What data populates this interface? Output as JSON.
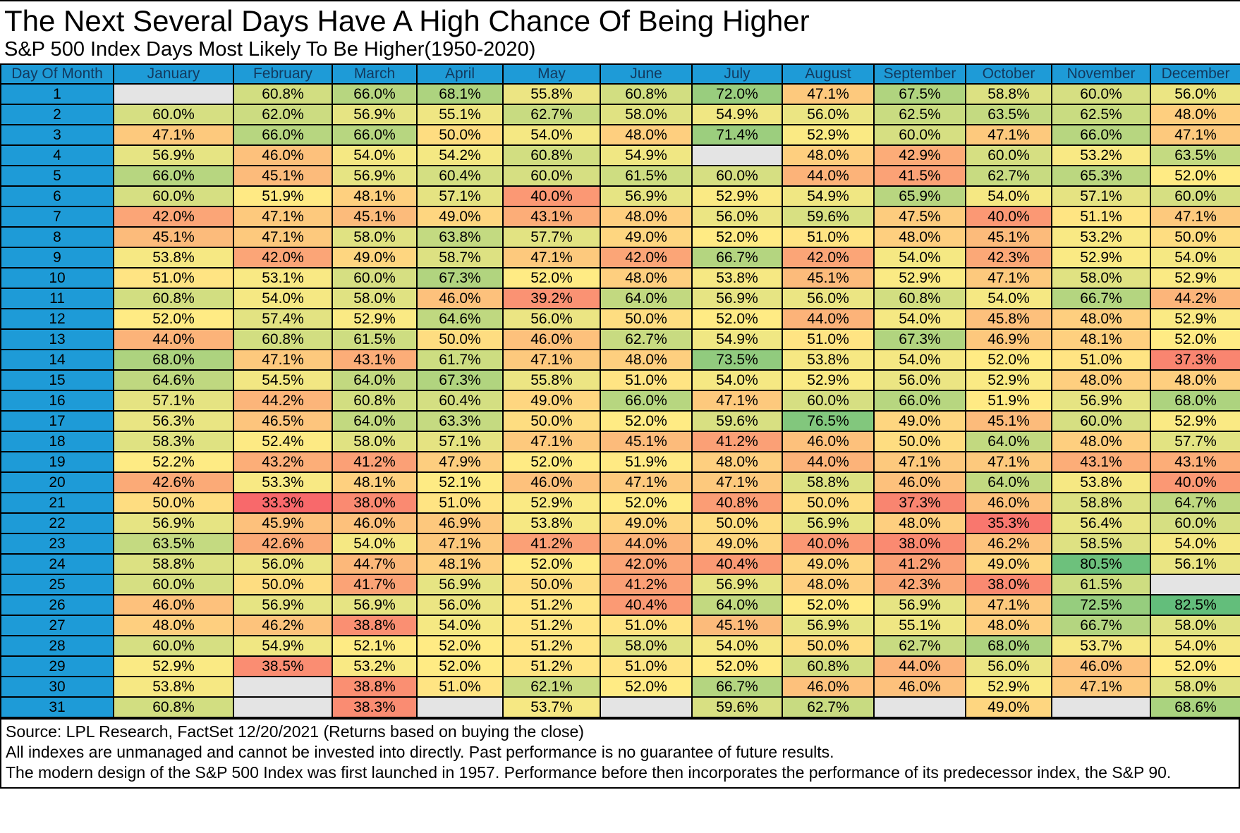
{
  "title": "The Next Several Days Have A High Chance Of Being Higher",
  "subtitle": "S&P 500 Index Days Most Likely To Be Higher(1950-2020)",
  "chart_data": {
    "type": "heatmap",
    "title": "The Next Several Days Have A High Chance Of Being Higher",
    "subtitle": "S&P 500 Index Days Most Likely To Be Higher(1950-2020)",
    "row_header": "Day Of Month",
    "columns": [
      "January",
      "February",
      "March",
      "April",
      "May",
      "June",
      "July",
      "August",
      "September",
      "October",
      "November",
      "December"
    ],
    "rows": [
      1,
      2,
      3,
      4,
      5,
      6,
      7,
      8,
      9,
      10,
      11,
      12,
      13,
      14,
      15,
      16,
      17,
      18,
      19,
      20,
      21,
      22,
      23,
      24,
      25,
      26,
      27,
      28,
      29,
      30,
      31
    ],
    "value_unit": "%",
    "values": [
      [
        null,
        60.8,
        66.0,
        68.1,
        55.8,
        60.8,
        72.0,
        47.1,
        67.5,
        58.8,
        60.0,
        56.0
      ],
      [
        60.0,
        62.0,
        56.9,
        55.1,
        62.7,
        58.0,
        54.9,
        56.0,
        62.5,
        63.5,
        62.5,
        48.0
      ],
      [
        47.1,
        66.0,
        66.0,
        50.0,
        54.0,
        48.0,
        71.4,
        52.9,
        60.0,
        47.1,
        66.0,
        47.1
      ],
      [
        56.9,
        46.0,
        54.0,
        54.2,
        60.8,
        54.9,
        null,
        48.0,
        42.9,
        60.0,
        53.2,
        63.5
      ],
      [
        66.0,
        45.1,
        56.9,
        60.4,
        60.0,
        61.5,
        60.0,
        44.0,
        41.5,
        62.7,
        65.3,
        52.0
      ],
      [
        60.0,
        51.9,
        48.1,
        57.1,
        40.0,
        56.9,
        52.9,
        54.9,
        65.9,
        54.0,
        57.1,
        60.0
      ],
      [
        42.0,
        47.1,
        45.1,
        49.0,
        43.1,
        48.0,
        56.0,
        59.6,
        47.5,
        40.0,
        51.1,
        47.1
      ],
      [
        45.1,
        47.1,
        58.0,
        63.8,
        57.7,
        49.0,
        52.0,
        51.0,
        48.0,
        45.1,
        53.2,
        50.0
      ],
      [
        53.8,
        42.0,
        49.0,
        58.7,
        47.1,
        42.0,
        66.7,
        42.0,
        54.0,
        42.3,
        52.9,
        54.0
      ],
      [
        51.0,
        53.1,
        60.0,
        67.3,
        52.0,
        48.0,
        53.8,
        45.1,
        52.9,
        47.1,
        58.0,
        52.9
      ],
      [
        60.8,
        54.0,
        58.0,
        46.0,
        39.2,
        64.0,
        56.9,
        56.0,
        60.8,
        54.0,
        66.7,
        44.2
      ],
      [
        52.0,
        57.4,
        52.9,
        64.6,
        56.0,
        50.0,
        52.0,
        44.0,
        54.0,
        45.8,
        48.0,
        52.9
      ],
      [
        44.0,
        60.8,
        61.5,
        50.0,
        46.0,
        62.7,
        54.9,
        51.0,
        67.3,
        46.9,
        48.1,
        52.0
      ],
      [
        68.0,
        47.1,
        43.1,
        61.7,
        47.1,
        48.0,
        73.5,
        53.8,
        54.0,
        52.0,
        51.0,
        37.3
      ],
      [
        64.6,
        54.5,
        64.0,
        67.3,
        55.8,
        51.0,
        54.0,
        52.9,
        56.0,
        52.9,
        48.0,
        48.0
      ],
      [
        57.1,
        44.2,
        60.8,
        60.4,
        49.0,
        66.0,
        47.1,
        60.0,
        66.0,
        51.9,
        56.9,
        68.0
      ],
      [
        56.3,
        46.5,
        64.0,
        63.3,
        50.0,
        52.0,
        59.6,
        76.5,
        49.0,
        45.1,
        60.0,
        52.9
      ],
      [
        58.3,
        52.4,
        58.0,
        57.1,
        47.1,
        45.1,
        41.2,
        46.0,
        50.0,
        64.0,
        48.0,
        57.7
      ],
      [
        52.2,
        43.2,
        41.2,
        47.9,
        52.0,
        51.9,
        48.0,
        44.0,
        47.1,
        47.1,
        43.1,
        43.1
      ],
      [
        42.6,
        53.3,
        48.1,
        52.1,
        46.0,
        47.1,
        47.1,
        58.8,
        46.0,
        64.0,
        53.8,
        40.0
      ],
      [
        50.0,
        33.3,
        38.0,
        51.0,
        52.9,
        52.0,
        40.8,
        50.0,
        37.3,
        46.0,
        58.8,
        64.7
      ],
      [
        56.9,
        45.9,
        46.0,
        46.9,
        53.8,
        49.0,
        50.0,
        56.9,
        48.0,
        35.3,
        56.4,
        60.0
      ],
      [
        63.5,
        42.6,
        54.0,
        47.1,
        41.2,
        44.0,
        49.0,
        40.0,
        38.0,
        46.2,
        58.5,
        54.0
      ],
      [
        58.8,
        56.0,
        44.7,
        48.1,
        52.0,
        42.0,
        40.4,
        49.0,
        41.2,
        49.0,
        80.5,
        56.1
      ],
      [
        60.0,
        50.0,
        41.7,
        56.9,
        50.0,
        41.2,
        56.9,
        48.0,
        42.3,
        38.0,
        61.5,
        null
      ],
      [
        46.0,
        56.9,
        56.9,
        56.0,
        51.2,
        40.4,
        64.0,
        52.0,
        56.9,
        47.1,
        72.5,
        82.5
      ],
      [
        48.0,
        46.2,
        38.8,
        54.0,
        51.2,
        51.0,
        45.1,
        56.9,
        55.1,
        48.0,
        66.7,
        58.0
      ],
      [
        60.0,
        54.9,
        52.1,
        52.0,
        51.2,
        58.0,
        54.0,
        50.0,
        62.7,
        68.0,
        53.7,
        54.0
      ],
      [
        52.9,
        38.5,
        53.2,
        52.0,
        51.2,
        51.0,
        52.0,
        60.8,
        44.0,
        56.0,
        46.0,
        52.0
      ],
      [
        53.8,
        null,
        38.8,
        51.0,
        62.1,
        52.0,
        66.7,
        46.0,
        46.0,
        52.9,
        47.1,
        58.0
      ],
      [
        60.8,
        null,
        38.3,
        null,
        53.7,
        null,
        59.6,
        62.7,
        null,
        49.0,
        null,
        68.6
      ]
    ],
    "color_scale": {
      "min_value": 33.3,
      "mid_value": 52.0,
      "max_value": 82.5,
      "min_color": "#F8696B",
      "mid_color": "#FFEB84",
      "max_color": "#63BE7B",
      "blank_color": "#E4E4E4",
      "header_color": "#1E9BD7",
      "header_text_color": "#12395E"
    }
  },
  "footer": {
    "lines": [
      "Source: LPL Research, FactSet 12/20/2021 (Returns based on buying the close)",
      "All indexes are unmanaged and cannot be invested into directly. Past performance is no guarantee of future results.",
      "The modern design of the S&P 500 Index was first launched in 1957. Performance before then incorporates the performance of its predecessor index, the S&P 90."
    ]
  }
}
